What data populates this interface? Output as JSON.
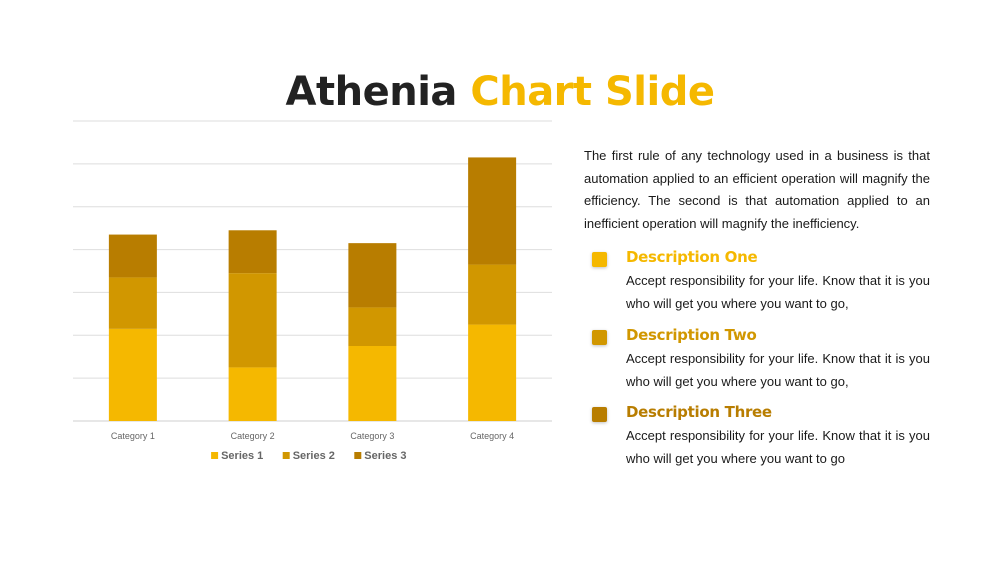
{
  "slide": {
    "title_part1": "Athenia",
    "title_part2": "Chart Slide",
    "intro": "The first rule of any technology used in a business is that automation applied to an efficient operation will magnify the efficiency. The second is that automation applied to an inefficient operation will magnify the inefficiency.",
    "descriptions": [
      {
        "heading": "Description One",
        "text": "Accept responsibility for your life. Know that it is you who will get you where you want to go,",
        "color": "#f5b800"
      },
      {
        "heading": "Description Two",
        "text": "Accept responsibility for your life. Know that it is you who will get you where you want to go,",
        "color": "#d19700"
      },
      {
        "heading": "Description Three",
        "text": "Accept responsibility for your life. Know that it is you who will get you where you want to go",
        "color": "#b87d00"
      }
    ]
  },
  "colors": {
    "accent": "#f5b800",
    "dark_text": "#222222"
  },
  "chart_data": {
    "type": "bar",
    "stacked": true,
    "categories": [
      "Category 1",
      "Category 2",
      "Category 3",
      "Category 4"
    ],
    "series": [
      {
        "name": "Series 1",
        "values": [
          4.3,
          2.5,
          3.5,
          4.5
        ],
        "color": "#f5b800"
      },
      {
        "name": "Series 2",
        "values": [
          2.4,
          4.4,
          1.8,
          2.8
        ],
        "color": "#d19700"
      },
      {
        "name": "Series 3",
        "values": [
          2.0,
          2.0,
          3.0,
          5.0
        ],
        "color": "#b87d00"
      }
    ],
    "ylim": [
      0,
      14
    ],
    "y_gridlines": [
      0,
      2,
      4,
      6,
      8,
      10,
      12,
      14
    ],
    "grid": true,
    "show_y_tick_labels": false,
    "legend": "bottom"
  }
}
